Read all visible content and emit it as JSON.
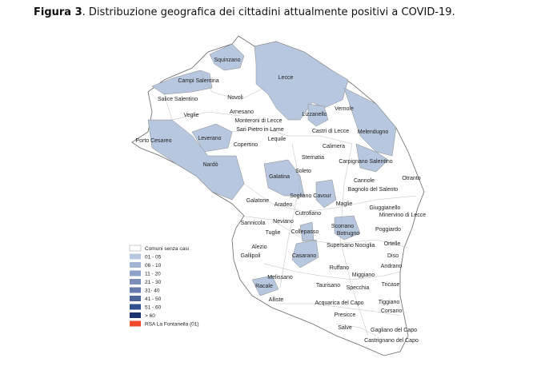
{
  "caption": {
    "bold": "Figura 3",
    "text": ". Distribuzione  geografica dei cittadini attualmente positivi a COVID-19."
  },
  "colors": {
    "no_cases": "#ffffff",
    "c01_05": "#b4c4de",
    "outline": "#666666",
    "rsa": "#ef4a2c"
  },
  "legend": [
    {
      "label": "Comuni senza casi",
      "color": "#ffffff"
    },
    {
      "label": "01 - 05",
      "color": "#b8c7e0"
    },
    {
      "label": "06 - 10",
      "color": "#a3b4d3"
    },
    {
      "label": "11 - 20",
      "color": "#8ea1c6"
    },
    {
      "label": "21 - 30",
      "color": "#7a8eb8"
    },
    {
      "label": "31- 40",
      "color": "#647bab"
    },
    {
      "label": "41 - 50",
      "color": "#4c659b"
    },
    {
      "label": "51 - 60",
      "color": "#2f4f8d"
    },
    {
      "label": "> 60",
      "color": "#18336e"
    },
    {
      "label": "RSA La Fontanella (01)",
      "color": "#ef4a2c"
    }
  ],
  "municipalities": [
    {
      "name": "Squinzano",
      "cls": "01 - 05"
    },
    {
      "name": "Campi Salentina",
      "cls": "01 - 05"
    },
    {
      "name": "Lecce",
      "cls": "01 - 05"
    },
    {
      "name": "Salice Salentino"
    },
    {
      "name": "Novoli"
    },
    {
      "name": "Veglie"
    },
    {
      "name": "Arnesano"
    },
    {
      "name": "Monteroni di Lecce"
    },
    {
      "name": "Lizzanello",
      "cls": "01 - 05"
    },
    {
      "name": "Vernole"
    },
    {
      "name": "Sari Pietro in Lame"
    },
    {
      "name": "Castri di Lecce"
    },
    {
      "name": "Melendugno",
      "cls": "01 - 05"
    },
    {
      "name": "Porto Cesareo"
    },
    {
      "name": "Leverano",
      "cls": "01 - 05"
    },
    {
      "name": "Copertino"
    },
    {
      "name": "Lequile"
    },
    {
      "name": "Calimera"
    },
    {
      "name": "Sternatia"
    },
    {
      "name": "Carpignano Salentino",
      "cls": "01 - 05"
    },
    {
      "name": "Soleto"
    },
    {
      "name": "Nardò",
      "cls": "01 - 05"
    },
    {
      "name": "Galatina",
      "cls": "01 - 05"
    },
    {
      "name": "Cannole"
    },
    {
      "name": "Otranto"
    },
    {
      "name": "Bagnolo del Salento"
    },
    {
      "name": "Sogliano Cavour",
      "cls": "01 - 05"
    },
    {
      "name": "Galatone"
    },
    {
      "name": "Aradeo"
    },
    {
      "name": "Maglie"
    },
    {
      "name": "Giuggianello"
    },
    {
      "name": "Minervino di Lecce"
    },
    {
      "name": "Cutrofiano"
    },
    {
      "name": "Sannicola"
    },
    {
      "name": "Neviano"
    },
    {
      "name": "Scorrano",
      "cls": "01 - 05"
    },
    {
      "name": "Poggiardo"
    },
    {
      "name": "Tuglie"
    },
    {
      "name": "Collepasso",
      "cls": "01 - 05"
    },
    {
      "name": "Botrugno"
    },
    {
      "name": "Alezio"
    },
    {
      "name": "Supersano"
    },
    {
      "name": "Nociglia"
    },
    {
      "name": "Ortelle"
    },
    {
      "name": "Gallipoli"
    },
    {
      "name": "Casarano",
      "cls": "01 - 05"
    },
    {
      "name": "Diso"
    },
    {
      "name": "Andrano"
    },
    {
      "name": "Ruffano"
    },
    {
      "name": "Miggiano"
    },
    {
      "name": "Melissano"
    },
    {
      "name": "Racale",
      "cls": "01 - 05"
    },
    {
      "name": "Taurisano"
    },
    {
      "name": "Specchia"
    },
    {
      "name": "Tricase"
    },
    {
      "name": "Alliste"
    },
    {
      "name": "Acquarica del Capo"
    },
    {
      "name": "Tiggiano"
    },
    {
      "name": "Corsano"
    },
    {
      "name": "Presicce"
    },
    {
      "name": "Salve"
    },
    {
      "name": "Gagliano del Capo"
    },
    {
      "name": "Castrignano del Capo"
    }
  ]
}
